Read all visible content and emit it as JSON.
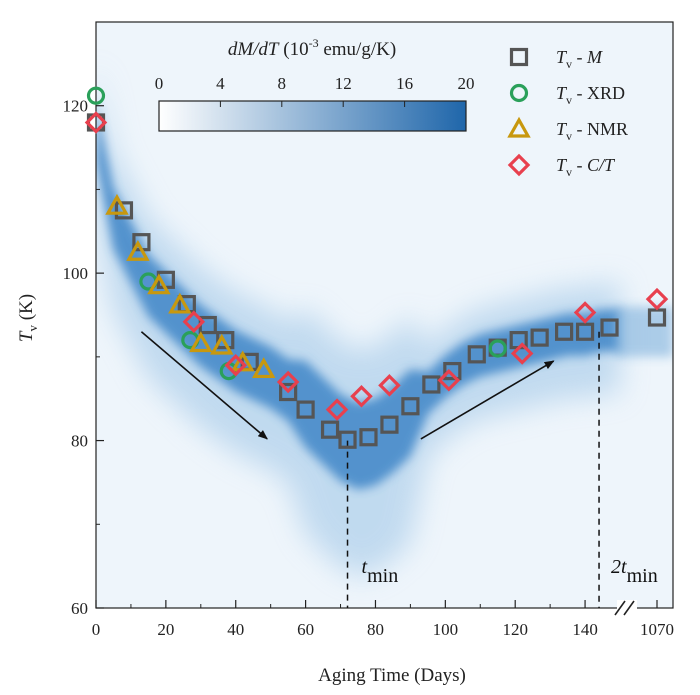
{
  "chart_data": {
    "type": "scatter",
    "xlabel": "Aging Time (Days)",
    "ylabel": {
      "main": "T",
      "sub": "v",
      "unit": " (K)"
    },
    "xlim": [
      0,
      150
    ],
    "ylim": [
      60,
      130
    ],
    "x_ticks": [
      0,
      20,
      40,
      60,
      80,
      100,
      120,
      140
    ],
    "x_break_tick": 1070,
    "y_ticks": [
      60,
      80,
      100,
      120
    ],
    "grid": false,
    "legend_position": "top-right",
    "colorbar": {
      "label": {
        "pre": "dM/dT",
        "mid": " (10",
        "exp": "-3",
        "post": " emu/g/K)"
      },
      "range": [
        0,
        20
      ],
      "ticks": [
        0,
        4,
        8,
        12,
        16,
        20
      ],
      "color_low": "#ffffff",
      "color_high": "#1f66aa"
    },
    "heatmap_ridge": {
      "x": [
        0,
        5,
        10,
        15,
        20,
        25,
        30,
        35,
        40,
        45,
        50,
        55,
        60,
        65,
        70,
        75,
        80,
        85,
        90,
        95,
        100,
        105,
        110,
        115,
        120,
        125,
        130,
        135,
        140,
        145,
        150
      ],
      "y": [
        117.5,
        107,
        103,
        99,
        97,
        95,
        93,
        91.5,
        90,
        89,
        88,
        86.5,
        85,
        83,
        81,
        80,
        80.5,
        82,
        84,
        86,
        88,
        89.5,
        90.5,
        91,
        91.5,
        92,
        92.5,
        93,
        93,
        93.5,
        93.5
      ]
    },
    "series": [
      {
        "name": "M",
        "label": {
          "main": "T",
          "sub": "v",
          "rest": " - ",
          "italic": "M",
          "plain": ""
        },
        "marker": "square",
        "color": "#555555",
        "x": [
          0,
          8,
          13,
          20,
          26,
          32,
          37,
          44,
          55,
          60,
          67,
          72,
          78,
          84,
          90,
          96,
          102,
          109,
          115,
          121,
          127,
          134,
          140,
          147
        ],
        "y": [
          118,
          107.5,
          103.7,
          99.2,
          96.3,
          93.8,
          92,
          89.4,
          85.8,
          83.7,
          81.3,
          80.1,
          80.4,
          81.9,
          84.1,
          86.7,
          88.3,
          90.3,
          91.1,
          92,
          92.3,
          93,
          93,
          93.5
        ],
        "break_point": {
          "x": 1070,
          "y": 94.7
        }
      },
      {
        "name": "XRD",
        "label": {
          "main": "T",
          "sub": "v",
          "rest": " - ",
          "italic": "",
          "plain": "XRD"
        },
        "marker": "circle",
        "color": "#2aa05a",
        "x": [
          0,
          15,
          27,
          38,
          115
        ],
        "y": [
          121.2,
          99,
          92,
          88.3,
          91
        ]
      },
      {
        "name": "NMR",
        "label": {
          "main": "T",
          "sub": "v",
          "rest": " - ",
          "italic": "",
          "plain": "NMR"
        },
        "marker": "triangle",
        "color": "#c8980e",
        "x": [
          6,
          12,
          18,
          24,
          30,
          36,
          42,
          48
        ],
        "y": [
          108,
          102.5,
          98.5,
          96.2,
          91.6,
          91.3,
          89.3,
          88.5
        ]
      },
      {
        "name": "C/T",
        "label": {
          "main": "T",
          "sub": "v",
          "rest": " - ",
          "italic": "C/T",
          "plain": ""
        },
        "marker": "diamond",
        "color": "#e8404e",
        "x": [
          0,
          28,
          40,
          55,
          69,
          76,
          84,
          101,
          122,
          140
        ],
        "y": [
          118,
          94.2,
          89,
          87,
          83.7,
          85.3,
          86.6,
          87.2,
          90.4,
          95.3
        ],
        "break_point": {
          "x": 1070,
          "y": 96.9
        }
      }
    ],
    "annotations": [
      {
        "type": "arrow",
        "from": [
          13,
          93
        ],
        "to": [
          49,
          80.2
        ]
      },
      {
        "type": "arrow",
        "from": [
          93,
          80.2
        ],
        "to": [
          131,
          89.5
        ]
      },
      {
        "type": "vline",
        "x": 72,
        "y_from": 80,
        "y_to": 60,
        "label": {
          "pre": "t",
          "sub": "min"
        }
      },
      {
        "type": "vline",
        "x": 144,
        "y_from": 93,
        "y_to": 60,
        "label": {
          "pre": "2t",
          "sub": "min"
        }
      }
    ]
  }
}
